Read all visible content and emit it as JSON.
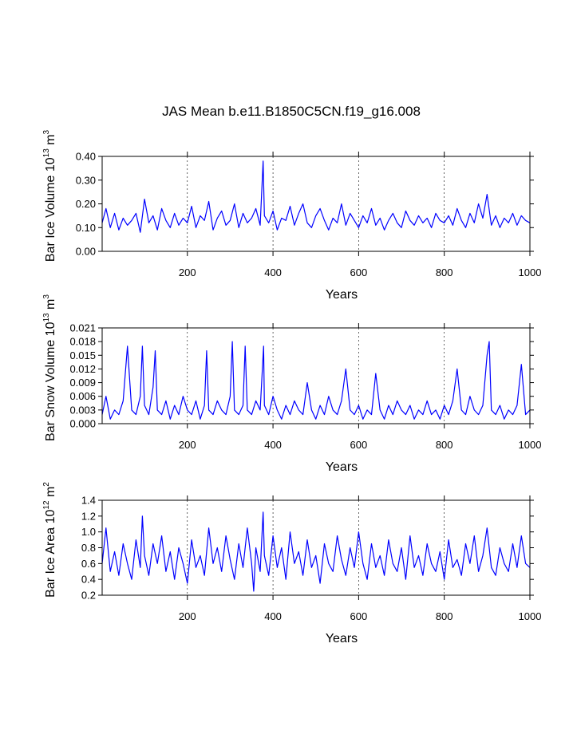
{
  "page_title": "JAS Mean b.e11.B1850C5CN.f19_g16.008",
  "chart_data": [
    {
      "type": "line",
      "id": "ice_volume",
      "ylabel": "Bar Ice Volume 10",
      "ylabel_sup": "13",
      "ylabel_unit": "m",
      "ylabel_unit_sup": "3",
      "xlabel": "Years",
      "xlim": [
        1,
        1000
      ],
      "ylim": [
        0.0,
        0.4
      ],
      "yticks": [
        "0.00",
        "0.10",
        "0.20",
        "0.30",
        "0.40"
      ],
      "ytick_values": [
        0.0,
        0.1,
        0.2,
        0.3,
        0.4
      ],
      "xticks": [
        "200",
        "400",
        "600",
        "800",
        "1000"
      ],
      "xtick_values": [
        200,
        400,
        600,
        800,
        1000
      ],
      "grid_x": [
        200,
        400,
        600,
        800
      ],
      "series": [
        {
          "name": "Bar Ice Volume",
          "color": "#0000ff",
          "years": [
            1,
            10,
            20,
            30,
            40,
            50,
            60,
            70,
            80,
            90,
            100,
            110,
            120,
            130,
            140,
            150,
            160,
            170,
            180,
            190,
            200,
            210,
            220,
            230,
            240,
            250,
            260,
            270,
            280,
            290,
            300,
            310,
            320,
            330,
            340,
            350,
            360,
            370,
            377,
            380,
            390,
            400,
            410,
            420,
            430,
            440,
            450,
            460,
            470,
            480,
            490,
            500,
            510,
            520,
            530,
            540,
            550,
            560,
            570,
            580,
            590,
            600,
            610,
            620,
            630,
            640,
            650,
            660,
            670,
            680,
            690,
            700,
            710,
            720,
            730,
            740,
            750,
            760,
            770,
            780,
            790,
            800,
            810,
            820,
            830,
            840,
            850,
            860,
            870,
            880,
            890,
            900,
            910,
            920,
            930,
            940,
            950,
            960,
            970,
            980,
            990,
            1000
          ],
          "values": [
            0.12,
            0.18,
            0.1,
            0.16,
            0.09,
            0.14,
            0.11,
            0.13,
            0.16,
            0.08,
            0.22,
            0.12,
            0.15,
            0.09,
            0.18,
            0.13,
            0.1,
            0.16,
            0.11,
            0.14,
            0.12,
            0.19,
            0.1,
            0.15,
            0.13,
            0.21,
            0.09,
            0.14,
            0.17,
            0.11,
            0.13,
            0.2,
            0.1,
            0.16,
            0.12,
            0.14,
            0.18,
            0.11,
            0.38,
            0.15,
            0.12,
            0.17,
            0.09,
            0.14,
            0.13,
            0.19,
            0.11,
            0.16,
            0.2,
            0.12,
            0.1,
            0.15,
            0.18,
            0.13,
            0.09,
            0.14,
            0.12,
            0.2,
            0.11,
            0.16,
            0.13,
            0.1,
            0.15,
            0.12,
            0.18,
            0.11,
            0.14,
            0.09,
            0.13,
            0.16,
            0.12,
            0.1,
            0.17,
            0.13,
            0.11,
            0.15,
            0.12,
            0.14,
            0.1,
            0.16,
            0.13,
            0.12,
            0.15,
            0.11,
            0.18,
            0.13,
            0.1,
            0.16,
            0.12,
            0.2,
            0.14,
            0.24,
            0.11,
            0.15,
            0.1,
            0.14,
            0.12,
            0.16,
            0.11,
            0.15,
            0.13,
            0.12
          ]
        }
      ]
    },
    {
      "type": "line",
      "id": "snow_volume",
      "ylabel": "Bar Snow Volume 10",
      "ylabel_sup": "13",
      "ylabel_unit": "m",
      "ylabel_unit_sup": "3",
      "xlabel": "Years",
      "xlim": [
        1,
        1000
      ],
      "ylim": [
        0.0,
        0.021
      ],
      "yticks": [
        "0.000",
        "0.003",
        "0.006",
        "0.009",
        "0.012",
        "0.015",
        "0.018",
        "0.021"
      ],
      "ytick_values": [
        0.0,
        0.003,
        0.006,
        0.009,
        0.012,
        0.015,
        0.018,
        0.021
      ],
      "xticks": [
        "200",
        "400",
        "600",
        "800",
        "1000"
      ],
      "xtick_values": [
        200,
        400,
        600,
        800,
        1000
      ],
      "grid_x": [
        200,
        400,
        600,
        800
      ],
      "series": [
        {
          "name": "Bar Snow Volume",
          "color": "#0000ff",
          "years": [
            1,
            10,
            20,
            30,
            40,
            50,
            60,
            70,
            80,
            90,
            95,
            100,
            110,
            120,
            125,
            130,
            140,
            150,
            160,
            170,
            180,
            190,
            200,
            210,
            220,
            230,
            240,
            245,
            250,
            260,
            270,
            280,
            290,
            300,
            305,
            310,
            320,
            330,
            335,
            340,
            350,
            360,
            370,
            378,
            380,
            390,
            400,
            410,
            420,
            430,
            440,
            450,
            460,
            470,
            480,
            490,
            500,
            510,
            520,
            530,
            540,
            550,
            560,
            570,
            580,
            590,
            600,
            610,
            620,
            630,
            640,
            650,
            660,
            670,
            680,
            690,
            700,
            710,
            720,
            730,
            740,
            750,
            760,
            770,
            780,
            790,
            800,
            810,
            820,
            830,
            840,
            850,
            860,
            870,
            880,
            890,
            900,
            905,
            910,
            920,
            930,
            940,
            950,
            960,
            970,
            980,
            990,
            1000
          ],
          "values": [
            0.002,
            0.006,
            0.001,
            0.003,
            0.002,
            0.005,
            0.017,
            0.003,
            0.002,
            0.006,
            0.017,
            0.004,
            0.002,
            0.008,
            0.016,
            0.003,
            0.002,
            0.005,
            0.001,
            0.004,
            0.002,
            0.006,
            0.003,
            0.002,
            0.005,
            0.001,
            0.004,
            0.016,
            0.003,
            0.002,
            0.005,
            0.003,
            0.002,
            0.006,
            0.018,
            0.003,
            0.002,
            0.004,
            0.017,
            0.003,
            0.002,
            0.005,
            0.003,
            0.017,
            0.004,
            0.002,
            0.006,
            0.003,
            0.001,
            0.004,
            0.002,
            0.005,
            0.003,
            0.002,
            0.009,
            0.003,
            0.001,
            0.004,
            0.002,
            0.006,
            0.003,
            0.002,
            0.005,
            0.012,
            0.003,
            0.002,
            0.004,
            0.001,
            0.003,
            0.002,
            0.011,
            0.003,
            0.001,
            0.004,
            0.002,
            0.005,
            0.003,
            0.002,
            0.004,
            0.001,
            0.003,
            0.002,
            0.005,
            0.002,
            0.003,
            0.001,
            0.004,
            0.002,
            0.005,
            0.012,
            0.003,
            0.002,
            0.006,
            0.003,
            0.002,
            0.004,
            0.015,
            0.018,
            0.003,
            0.002,
            0.004,
            0.001,
            0.003,
            0.002,
            0.004,
            0.013,
            0.002,
            0.003
          ]
        }
      ]
    },
    {
      "type": "line",
      "id": "ice_area",
      "ylabel": "Bar Ice Area 10",
      "ylabel_sup": "12",
      "ylabel_unit": "m",
      "ylabel_unit_sup": "2",
      "xlabel": "Years",
      "xlim": [
        1,
        1000
      ],
      "ylim": [
        0.2,
        1.4
      ],
      "yticks": [
        "0.2",
        "0.4",
        "0.6",
        "0.8",
        "1.0",
        "1.2",
        "1.4"
      ],
      "ytick_values": [
        0.2,
        0.4,
        0.6,
        0.8,
        1.0,
        1.2,
        1.4
      ],
      "xticks": [
        "200",
        "400",
        "600",
        "800",
        "1000"
      ],
      "xtick_values": [
        200,
        400,
        600,
        800,
        1000
      ],
      "grid_x": [
        200,
        400,
        600,
        800
      ],
      "series": [
        {
          "name": "Bar Ice Area",
          "color": "#0000ff",
          "years": [
            1,
            10,
            20,
            30,
            40,
            50,
            60,
            70,
            80,
            90,
            95,
            100,
            110,
            120,
            130,
            140,
            150,
            160,
            170,
            180,
            190,
            200,
            210,
            220,
            230,
            240,
            250,
            260,
            270,
            280,
            290,
            300,
            310,
            320,
            330,
            340,
            350,
            355,
            360,
            370,
            377,
            380,
            390,
            400,
            410,
            420,
            430,
            440,
            450,
            460,
            470,
            480,
            490,
            500,
            510,
            520,
            530,
            540,
            550,
            560,
            570,
            580,
            590,
            600,
            610,
            620,
            630,
            640,
            650,
            660,
            670,
            680,
            690,
            700,
            710,
            720,
            730,
            740,
            750,
            760,
            770,
            780,
            790,
            800,
            810,
            820,
            830,
            840,
            850,
            860,
            870,
            880,
            890,
            900,
            910,
            920,
            930,
            940,
            950,
            960,
            970,
            980,
            990,
            1000
          ],
          "values": [
            0.6,
            1.05,
            0.5,
            0.75,
            0.45,
            0.85,
            0.6,
            0.4,
            0.9,
            0.55,
            1.2,
            0.7,
            0.45,
            0.85,
            0.6,
            0.95,
            0.5,
            0.75,
            0.4,
            0.8,
            0.6,
            0.35,
            0.9,
            0.55,
            0.7,
            0.45,
            1.05,
            0.6,
            0.8,
            0.5,
            0.95,
            0.65,
            0.4,
            0.85,
            0.55,
            1.05,
            0.6,
            0.25,
            0.8,
            0.5,
            1.25,
            0.7,
            0.45,
            0.95,
            0.55,
            0.8,
            0.4,
            1.0,
            0.6,
            0.75,
            0.45,
            0.9,
            0.55,
            0.7,
            0.35,
            0.85,
            0.6,
            0.5,
            0.95,
            0.65,
            0.45,
            0.8,
            0.55,
            1.0,
            0.6,
            0.4,
            0.85,
            0.55,
            0.7,
            0.45,
            0.9,
            0.6,
            0.5,
            0.8,
            0.4,
            0.95,
            0.55,
            0.7,
            0.45,
            0.85,
            0.6,
            0.5,
            0.75,
            0.4,
            0.9,
            0.55,
            0.65,
            0.45,
            0.85,
            0.6,
            0.95,
            0.5,
            0.7,
            1.05,
            0.55,
            0.45,
            0.8,
            0.6,
            0.5,
            0.85,
            0.55,
            0.95,
            0.6,
            0.55
          ]
        }
      ]
    }
  ]
}
